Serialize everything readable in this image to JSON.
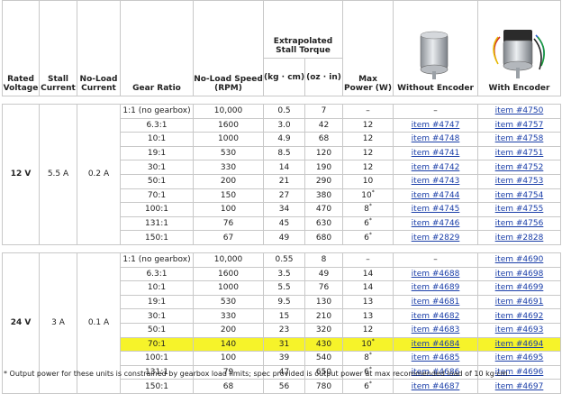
{
  "headers": {
    "rated_voltage": "Rated Voltage",
    "stall_current": "Stall Current",
    "no_load_current": "No-Load Current",
    "gear_ratio": "Gear Ratio",
    "no_load_speed": "No-Load Speed (RPM)",
    "extrapolated_stall_torque": "Extrapolated Stall Torque",
    "torque_kgcm": "(kg · cm)",
    "torque_ozin": "(oz · in)",
    "max_power": "Max Power (W)",
    "without_encoder": "Without Encoder",
    "with_encoder": "With Encoder"
  },
  "images": {
    "without_encoder": "motor-without-encoder",
    "with_encoder": "motor-with-encoder"
  },
  "groups": [
    {
      "voltage": "12 V",
      "stall_current": "5.5 A",
      "no_load_current": "0.2 A",
      "rows": [
        {
          "ratio": "1:1 (no gearbox)",
          "speed": "10,000",
          "kgcm": "0.5",
          "ozin": "7",
          "power": "–",
          "power_note": "",
          "item_no": "–",
          "item_enc": "item #4750",
          "highlight": false
        },
        {
          "ratio": "6.3:1",
          "speed": "1600",
          "kgcm": "3.0",
          "ozin": "42",
          "power": "12",
          "power_note": "",
          "item_no": "item #4747",
          "item_enc": "item #4757",
          "highlight": false
        },
        {
          "ratio": "10:1",
          "speed": "1000",
          "kgcm": "4.9",
          "ozin": "68",
          "power": "12",
          "power_note": "",
          "item_no": "item #4748",
          "item_enc": "item #4758",
          "highlight": false
        },
        {
          "ratio": "19:1",
          "speed": "530",
          "kgcm": "8.5",
          "ozin": "120",
          "power": "12",
          "power_note": "",
          "item_no": "item #4741",
          "item_enc": "item #4751",
          "highlight": false
        },
        {
          "ratio": "30:1",
          "speed": "330",
          "kgcm": "14",
          "ozin": "190",
          "power": "12",
          "power_note": "",
          "item_no": "item #4742",
          "item_enc": "item #4752",
          "highlight": false
        },
        {
          "ratio": "50:1",
          "speed": "200",
          "kgcm": "21",
          "ozin": "290",
          "power": "10",
          "power_note": "",
          "item_no": "item #4743",
          "item_enc": "item #4753",
          "highlight": false
        },
        {
          "ratio": "70:1",
          "speed": "150",
          "kgcm": "27",
          "ozin": "380",
          "power": "10",
          "power_note": "*",
          "item_no": "item #4744",
          "item_enc": "item #4754",
          "highlight": false
        },
        {
          "ratio": "100:1",
          "speed": "100",
          "kgcm": "34",
          "ozin": "470",
          "power": "8",
          "power_note": "*",
          "item_no": "item #4745",
          "item_enc": "item #4755",
          "highlight": false
        },
        {
          "ratio": "131:1",
          "speed": "76",
          "kgcm": "45",
          "ozin": "630",
          "power": "6",
          "power_note": "*",
          "item_no": "item #4746",
          "item_enc": "item #4756",
          "highlight": false
        },
        {
          "ratio": "150:1",
          "speed": "67",
          "kgcm": "49",
          "ozin": "680",
          "power": "6",
          "power_note": "*",
          "item_no": "item #2829",
          "item_enc": "item #2828",
          "highlight": false
        }
      ]
    },
    {
      "voltage": "24 V",
      "stall_current": "3 A",
      "no_load_current": "0.1 A",
      "rows": [
        {
          "ratio": "1:1 (no gearbox)",
          "speed": "10,000",
          "kgcm": "0.55",
          "ozin": "8",
          "power": "–",
          "power_note": "",
          "item_no": "–",
          "item_enc": "item #4690",
          "highlight": false
        },
        {
          "ratio": "6.3:1",
          "speed": "1600",
          "kgcm": "3.5",
          "ozin": "49",
          "power": "14",
          "power_note": "",
          "item_no": "item #4688",
          "item_enc": "item #4698",
          "highlight": false
        },
        {
          "ratio": "10:1",
          "speed": "1000",
          "kgcm": "5.5",
          "ozin": "76",
          "power": "14",
          "power_note": "",
          "item_no": "item #4689",
          "item_enc": "item #4699",
          "highlight": false
        },
        {
          "ratio": "19:1",
          "speed": "530",
          "kgcm": "9.5",
          "ozin": "130",
          "power": "13",
          "power_note": "",
          "item_no": "item #4681",
          "item_enc": "item #4691",
          "highlight": false
        },
        {
          "ratio": "30:1",
          "speed": "330",
          "kgcm": "15",
          "ozin": "210",
          "power": "13",
          "power_note": "",
          "item_no": "item #4682",
          "item_enc": "item #4692",
          "highlight": false
        },
        {
          "ratio": "50:1",
          "speed": "200",
          "kgcm": "23",
          "ozin": "320",
          "power": "12",
          "power_note": "",
          "item_no": "item #4683",
          "item_enc": "item #4693",
          "highlight": false
        },
        {
          "ratio": "70:1",
          "speed": "140",
          "kgcm": "31",
          "ozin": "430",
          "power": "10",
          "power_note": "*",
          "item_no": "item #4684",
          "item_enc": "item #4694",
          "highlight": true
        },
        {
          "ratio": "100:1",
          "speed": "100",
          "kgcm": "39",
          "ozin": "540",
          "power": "8",
          "power_note": "*",
          "item_no": "item #4685",
          "item_enc": "item #4695",
          "highlight": false
        },
        {
          "ratio": "131:1",
          "speed": "79",
          "kgcm": "47",
          "ozin": "650",
          "power": "6",
          "power_note": "*",
          "item_no": "item #4686",
          "item_enc": "item #4696",
          "highlight": false
        },
        {
          "ratio": "150:1",
          "speed": "68",
          "kgcm": "56",
          "ozin": "780",
          "power": "6",
          "power_note": "*",
          "item_no": "item #4687",
          "item_enc": "item #4697",
          "highlight": false
        }
      ]
    }
  ],
  "footnote": "* Output power for these units is constrained by gearbox load limits; spec provided is output power at max recommended load of 10 kg·cm."
}
